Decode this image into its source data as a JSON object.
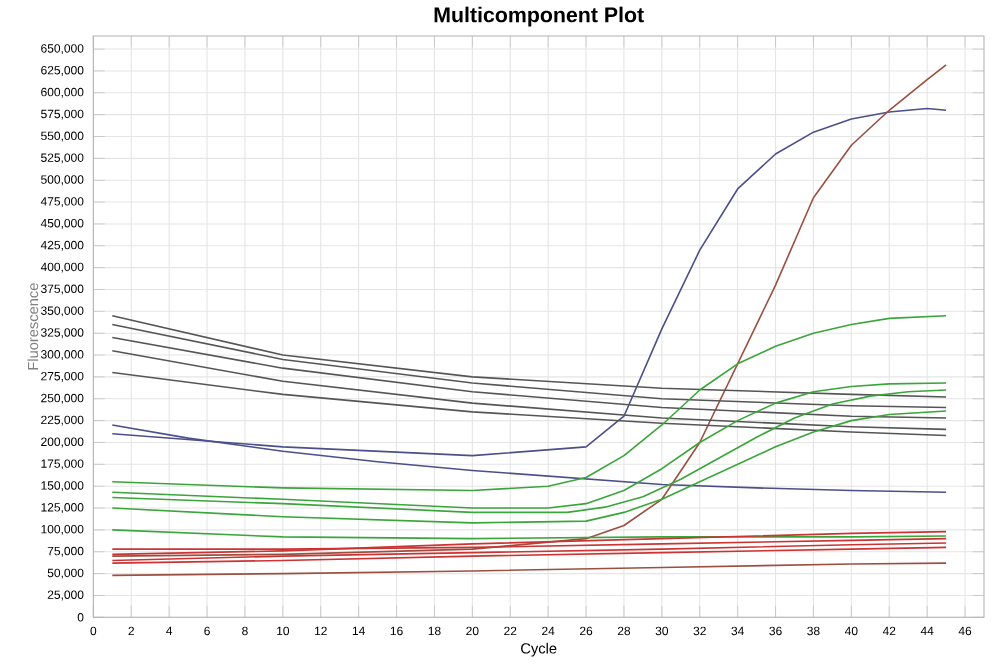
{
  "chart_data": {
    "type": "line",
    "title": "Multicomponent Plot",
    "xlabel": "Cycle",
    "ylabel": "Fluorescence",
    "grid": true,
    "xlim": [
      0,
      47
    ],
    "ylim": [
      0,
      665000
    ],
    "xticks": [
      0,
      2,
      4,
      6,
      8,
      10,
      12,
      14,
      16,
      18,
      20,
      22,
      24,
      26,
      28,
      30,
      32,
      34,
      36,
      38,
      40,
      42,
      44,
      46
    ],
    "yticks": [
      {
        "value": 0,
        "label": "0"
      },
      {
        "value": 25000,
        "label": "25,000"
      },
      {
        "value": 50000,
        "label": "50,000"
      },
      {
        "value": 75000,
        "label": "75,000"
      },
      {
        "value": 100000,
        "label": "100,000"
      },
      {
        "value": 125000,
        "label": "125,000"
      },
      {
        "value": 150000,
        "label": "150,000"
      },
      {
        "value": 175000,
        "label": "175,000"
      },
      {
        "value": 200000,
        "label": "200,000"
      },
      {
        "value": 225000,
        "label": "225,000"
      },
      {
        "value": 250000,
        "label": "250,000"
      },
      {
        "value": 275000,
        "label": "275,000"
      },
      {
        "value": 300000,
        "label": "300,000"
      },
      {
        "value": 325000,
        "label": "325,000"
      },
      {
        "value": 350000,
        "label": "350,000"
      },
      {
        "value": 375000,
        "label": "375,000"
      },
      {
        "value": 400000,
        "label": "400,000"
      },
      {
        "value": 425000,
        "label": "425,000"
      },
      {
        "value": 450000,
        "label": "450,000"
      },
      {
        "value": 475000,
        "label": "475,000"
      },
      {
        "value": 500000,
        "label": "500,000"
      },
      {
        "value": 525000,
        "label": "525,000"
      },
      {
        "value": 550000,
        "label": "550,000"
      },
      {
        "value": 575000,
        "label": "575,000"
      },
      {
        "value": 600000,
        "label": "600,000"
      },
      {
        "value": 625000,
        "label": "625,000"
      },
      {
        "value": 650000,
        "label": "650,000"
      }
    ],
    "series": [
      {
        "color": "#4b4f8a",
        "x": [
          1,
          10,
          20,
          26,
          28,
          30,
          32,
          34,
          36,
          38,
          40,
          42,
          44,
          45
        ],
        "values": [
          210000,
          195000,
          185000,
          195000,
          230000,
          330000,
          420000,
          490000,
          530000,
          555000,
          570000,
          578000,
          582000,
          580000
        ]
      },
      {
        "color": "#4b4f8a",
        "x": [
          1,
          5,
          10,
          15,
          20,
          25,
          30,
          35,
          40,
          45
        ],
        "values": [
          220000,
          205000,
          190000,
          178000,
          168000,
          160000,
          152000,
          148000,
          145000,
          143000
        ]
      },
      {
        "color": "#9a5040",
        "x": [
          1,
          10,
          20,
          26,
          28,
          30,
          32,
          34,
          36,
          38,
          40,
          42,
          44,
          45
        ],
        "values": [
          70000,
          72000,
          78000,
          90000,
          105000,
          135000,
          200000,
          290000,
          380000,
          480000,
          540000,
          580000,
          615000,
          632000
        ]
      },
      {
        "color": "#555555",
        "x": [
          1,
          10,
          20,
          30,
          40,
          45
        ],
        "values": [
          345000,
          300000,
          275000,
          262000,
          255000,
          252000
        ]
      },
      {
        "color": "#555555",
        "x": [
          1,
          10,
          20,
          30,
          40,
          45
        ],
        "values": [
          335000,
          295000,
          268000,
          250000,
          242000,
          240000
        ]
      },
      {
        "color": "#555555",
        "x": [
          1,
          10,
          20,
          30,
          40,
          45
        ],
        "values": [
          320000,
          285000,
          258000,
          240000,
          230000,
          228000
        ]
      },
      {
        "color": "#555555",
        "x": [
          1,
          10,
          20,
          30,
          40,
          45
        ],
        "values": [
          305000,
          270000,
          245000,
          228000,
          218000,
          215000
        ]
      },
      {
        "color": "#555555",
        "x": [
          1,
          10,
          20,
          30,
          40,
          45
        ],
        "values": [
          280000,
          255000,
          235000,
          222000,
          212000,
          208000
        ]
      },
      {
        "color": "#3aa53a",
        "x": [
          1,
          10,
          20,
          24,
          26,
          28,
          30,
          32,
          34,
          36,
          38,
          40,
          42,
          45
        ],
        "values": [
          155000,
          148000,
          145000,
          150000,
          160000,
          185000,
          220000,
          260000,
          290000,
          310000,
          325000,
          335000,
          342000,
          345000
        ]
      },
      {
        "color": "#3aa53a",
        "x": [
          1,
          10,
          20,
          24,
          26,
          28,
          30,
          32,
          34,
          36,
          38,
          40,
          42,
          45
        ],
        "values": [
          143000,
          135000,
          125000,
          125000,
          130000,
          145000,
          170000,
          200000,
          225000,
          245000,
          258000,
          264000,
          267000,
          268000
        ]
      },
      {
        "color": "#3aa53a",
        "x": [
          1,
          10,
          20,
          25,
          27,
          29,
          31,
          33,
          35,
          37,
          39,
          41,
          43,
          45
        ],
        "values": [
          137000,
          130000,
          120000,
          120000,
          126000,
          138000,
          158000,
          182000,
          206000,
          228000,
          244000,
          253000,
          258000,
          260000
        ]
      },
      {
        "color": "#3aa53a",
        "x": [
          1,
          10,
          20,
          26,
          28,
          30,
          32,
          34,
          36,
          38,
          40,
          42,
          45
        ],
        "values": [
          125000,
          115000,
          108000,
          110000,
          120000,
          135000,
          155000,
          175000,
          195000,
          212000,
          225000,
          232000,
          236000
        ]
      },
      {
        "color": "#3aa53a",
        "x": [
          1,
          10,
          20,
          30,
          40,
          45
        ],
        "values": [
          100000,
          92000,
          90000,
          92000,
          92000,
          93000
        ]
      },
      {
        "color": "#cc3333",
        "x": [
          1,
          10,
          20,
          30,
          40,
          45
        ],
        "values": [
          78000,
          78000,
          80000,
          84000,
          88000,
          90000
        ]
      },
      {
        "color": "#cc3333",
        "x": [
          1,
          10,
          20,
          30,
          40,
          45
        ],
        "values": [
          72000,
          76000,
          84000,
          90000,
          96000,
          98000
        ]
      },
      {
        "color": "#cc3333",
        "x": [
          1,
          10,
          20,
          30,
          40,
          45
        ],
        "values": [
          65000,
          70000,
          74000,
          78000,
          83000,
          85000
        ]
      },
      {
        "color": "#cc3333",
        "x": [
          1,
          10,
          20,
          30,
          40,
          45
        ],
        "values": [
          62000,
          65000,
          70000,
          74000,
          78000,
          80000
        ]
      },
      {
        "color": "#9a5040",
        "x": [
          1,
          10,
          20,
          30,
          40,
          45
        ],
        "values": [
          48000,
          50000,
          53000,
          57000,
          61000,
          62000
        ]
      }
    ]
  }
}
